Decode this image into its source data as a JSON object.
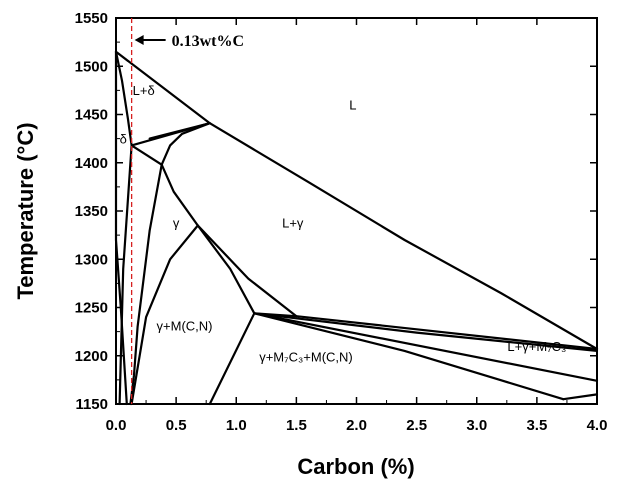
{
  "chart_data": {
    "type": "line",
    "xlabel": "Carbon (%)",
    "ylabel": "Temperature (°C)",
    "xlim": [
      0.0,
      4.0
    ],
    "ylim": [
      1150,
      1550
    ],
    "xticks": [
      0.0,
      0.5,
      1.0,
      1.5,
      2.0,
      2.5,
      3.0,
      3.5,
      4.0
    ],
    "xtick_labels": [
      "0.0",
      "0.5",
      "1.0",
      "1.5",
      "2.0",
      "2.5",
      "3.0",
      "3.5",
      "4.0"
    ],
    "yticks": [
      1150,
      1200,
      1250,
      1300,
      1350,
      1400,
      1450,
      1500,
      1550
    ],
    "ytick_labels": [
      "1150",
      "1200",
      "1250",
      "1300",
      "1350",
      "1400",
      "1450",
      "1500",
      "1550"
    ],
    "grid": false,
    "boundaries": [
      {
        "points": [
          [
            0.0,
            1515
          ],
          [
            0.78,
            1441
          ],
          [
            1.6,
            1380
          ],
          [
            2.4,
            1320
          ],
          [
            3.2,
            1265
          ],
          [
            4.0,
            1207
          ]
        ]
      },
      {
        "points": [
          [
            0.0,
            1515
          ],
          [
            0.05,
            1485
          ],
          [
            0.1,
            1445
          ],
          [
            0.13,
            1418
          ]
        ]
      },
      {
        "points": [
          [
            0.0,
            1515
          ],
          [
            0.0,
            1320
          ],
          [
            0.04,
            1250
          ],
          [
            0.09,
            1150
          ]
        ]
      },
      {
        "points": [
          [
            0.13,
            1418
          ],
          [
            0.78,
            1441
          ]
        ]
      },
      {
        "points": [
          [
            0.28,
            1425
          ],
          [
            0.78,
            1441
          ]
        ]
      },
      {
        "points": [
          [
            0.38,
            1398
          ],
          [
            0.45,
            1418
          ],
          [
            0.55,
            1430
          ],
          [
            0.78,
            1441
          ]
        ]
      },
      {
        "points": [
          [
            0.13,
            1418
          ],
          [
            0.38,
            1398
          ]
        ]
      },
      {
        "points": [
          [
            0.13,
            1418
          ],
          [
            0.06,
            1290
          ],
          [
            0.03,
            1150
          ]
        ]
      },
      {
        "points": [
          [
            0.38,
            1398
          ],
          [
            0.28,
            1330
          ],
          [
            0.18,
            1230
          ],
          [
            0.15,
            1180
          ],
          [
            0.12,
            1150
          ]
        ]
      },
      {
        "points": [
          [
            0.38,
            1398
          ],
          [
            0.48,
            1370
          ],
          [
            0.68,
            1335
          ]
        ]
      },
      {
        "points": [
          [
            0.13,
            1150
          ],
          [
            0.25,
            1240
          ],
          [
            0.45,
            1300
          ],
          [
            0.68,
            1335
          ]
        ]
      },
      {
        "points": [
          [
            0.68,
            1335
          ],
          [
            0.95,
            1290
          ],
          [
            1.15,
            1244
          ]
        ]
      },
      {
        "points": [
          [
            0.68,
            1335
          ],
          [
            1.1,
            1280
          ],
          [
            1.5,
            1241
          ]
        ]
      },
      {
        "points": [
          [
            1.15,
            1244
          ],
          [
            0.78,
            1150
          ]
        ]
      },
      {
        "points": [
          [
            1.15,
            1244
          ],
          [
            1.5,
            1241
          ],
          [
            4.0,
            1207
          ]
        ]
      },
      {
        "points": [
          [
            1.15,
            1244
          ],
          [
            2.5,
            1224
          ],
          [
            4.0,
            1205
          ]
        ]
      },
      {
        "points": [
          [
            1.15,
            1244
          ],
          [
            4.0,
            1174
          ]
        ]
      },
      {
        "points": [
          [
            1.15,
            1244
          ],
          [
            2.4,
            1205
          ],
          [
            3.72,
            1155
          ]
        ]
      },
      {
        "points": [
          [
            3.72,
            1155
          ],
          [
            4.0,
            1160
          ]
        ]
      }
    ],
    "reference_line": {
      "x": 0.13,
      "label": "0.13wt%C",
      "color": "#d62020"
    },
    "region_labels": [
      {
        "text": "L",
        "x": 1.97,
        "y": 1455
      },
      {
        "text": "L+δ",
        "x": 0.23,
        "y": 1470
      },
      {
        "text": "δ",
        "x": 0.06,
        "y": 1420
      },
      {
        "text": "γ",
        "x": 0.5,
        "y": 1333
      },
      {
        "text": "L+γ",
        "x": 1.47,
        "y": 1333
      },
      {
        "text": "γ+M(C,N)",
        "x": 0.57,
        "y": 1226
      },
      {
        "text": "γ+M₇C₃+M(C,N)",
        "x": 1.58,
        "y": 1194
      },
      {
        "text": "L+γ+M₇C₃",
        "x": 3.5,
        "y": 1205
      }
    ]
  }
}
